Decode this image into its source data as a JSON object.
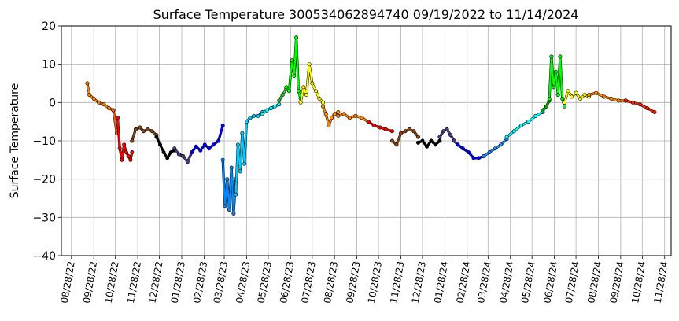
{
  "chart_data": {
    "type": "line",
    "title": "Surface Temperature 300534062894740  09/19/2022 to 11/14/2024",
    "xlabel": "",
    "ylabel": "Surface Temperature",
    "ylim": [
      -40,
      20
    ],
    "yticks": [
      -40,
      -30,
      -20,
      -10,
      0,
      10,
      20
    ],
    "yticklabels": [
      "−40",
      "−30",
      "−20",
      "−10",
      "0",
      "10",
      "20"
    ],
    "xlim": [
      "2022-08-14",
      "2024-12-07"
    ],
    "xticks": [
      "2022-08-28",
      "2022-09-28",
      "2022-10-28",
      "2022-11-28",
      "2022-12-28",
      "2023-01-28",
      "2023-02-28",
      "2023-03-28",
      "2023-04-28",
      "2023-05-28",
      "2023-06-28",
      "2023-07-28",
      "2023-08-28",
      "2023-09-28",
      "2023-10-28",
      "2023-11-28",
      "2023-12-28",
      "2024-01-28",
      "2024-02-28",
      "2024-03-28",
      "2024-04-28",
      "2024-05-28",
      "2024-06-28",
      "2024-07-28",
      "2024-08-28",
      "2024-09-28",
      "2024-10-28",
      "2024-11-28"
    ],
    "xticklabels": [
      "08/28/22",
      "09/28/22",
      "10/28/22",
      "11/28/22",
      "12/28/22",
      "01/28/23",
      "02/28/23",
      "03/28/23",
      "04/28/23",
      "05/28/23",
      "06/28/23",
      "07/28/23",
      "08/28/23",
      "09/28/23",
      "10/28/23",
      "11/28/23",
      "12/28/23",
      "01/28/24",
      "02/28/24",
      "03/28/24",
      "04/28/24",
      "05/28/24",
      "06/28/24",
      "07/28/24",
      "08/28/24",
      "09/28/24",
      "10/28/24",
      "11/28/24"
    ],
    "grid": true,
    "series": [
      {
        "color": "#ff7f00",
        "x": [
          "2022-09-19",
          "2022-09-22",
          "2022-09-28",
          "2022-10-05",
          "2022-10-12",
          "2022-10-19",
          "2022-10-25"
        ],
        "y": [
          5.0,
          2.0,
          1.0,
          0.0,
          -0.5,
          -1.5,
          -2.0
        ]
      },
      {
        "color": "#ff6000",
        "x": [
          "2022-10-25",
          "2022-10-30"
        ],
        "y": [
          -2.0,
          -8.0
        ]
      },
      {
        "color": "#ff0000",
        "x": [
          "2022-10-31",
          "2022-11-03",
          "2022-11-06",
          "2022-11-09",
          "2022-11-12",
          "2022-11-15",
          "2022-11-18",
          "2022-11-20"
        ],
        "y": [
          -4.0,
          -12.0,
          -15.0,
          -11.0,
          -13.0,
          -14.0,
          -15.0,
          -13.0
        ]
      },
      {
        "color": "#8b4513",
        "x": [
          "2022-11-20",
          "2022-11-25",
          "2022-12-01",
          "2022-12-06",
          "2022-12-12",
          "2022-12-18",
          "2022-12-24"
        ],
        "y": [
          -10.0,
          -7.0,
          -6.5,
          -7.5,
          -7.0,
          -7.5,
          -8.5
        ]
      },
      {
        "color": "#000000",
        "x": [
          "2022-12-24",
          "2022-12-29",
          "2023-01-03",
          "2023-01-08",
          "2023-01-13",
          "2023-01-18"
        ],
        "y": [
          -9.0,
          -11.0,
          -13.0,
          -14.5,
          -13.0,
          -12.5
        ]
      },
      {
        "color": "#483d8b",
        "x": [
          "2023-01-18",
          "2023-01-24",
          "2023-01-30",
          "2023-02-05",
          "2023-02-11"
        ],
        "y": [
          -12.0,
          -13.5,
          -14.0,
          -15.5,
          -13.0
        ]
      },
      {
        "color": "#0000ff",
        "x": [
          "2023-02-11",
          "2023-02-17",
          "2023-02-23",
          "2023-03-01",
          "2023-03-07",
          "2023-03-13",
          "2023-03-20",
          "2023-03-26"
        ],
        "y": [
          -13.0,
          -11.5,
          -12.5,
          -11.0,
          -12.0,
          -11.0,
          -10.0,
          -6.0
        ]
      },
      {
        "color": "#0088ff",
        "x": [
          "2023-03-26",
          "2023-03-29",
          "2023-04-01",
          "2023-04-04",
          "2023-04-07",
          "2023-04-10",
          "2023-04-13"
        ],
        "y": [
          -15.0,
          -27.0,
          -20.0,
          -28.0,
          -17.0,
          -29.0,
          -20.0
        ]
      },
      {
        "color": "#00ccff",
        "x": [
          "2023-04-13",
          "2023-04-16",
          "2023-04-19",
          "2023-04-22",
          "2023-04-25",
          "2023-04-28",
          "2023-05-03",
          "2023-05-08",
          "2023-05-14",
          "2023-05-20"
        ],
        "y": [
          -24.0,
          -11.0,
          -18.0,
          -8.0,
          -16.0,
          -5.0,
          -4.0,
          -3.5,
          -3.5,
          -2.5
        ]
      },
      {
        "color": "#00ffff",
        "x": [
          "2023-05-20",
          "2023-05-26",
          "2023-06-01",
          "2023-06-06",
          "2023-06-12"
        ],
        "y": [
          -3.0,
          -2.0,
          -1.5,
          -1.0,
          -0.5
        ]
      },
      {
        "color": "#33cc33",
        "x": [
          "2023-06-12",
          "2023-06-17",
          "2023-06-22"
        ],
        "y": [
          0.5,
          2.0,
          3.5
        ]
      },
      {
        "color": "#00ff00",
        "x": [
          "2023-06-22",
          "2023-06-26",
          "2023-06-30",
          "2023-07-03",
          "2023-07-06",
          "2023-07-09",
          "2023-07-12"
        ],
        "y": [
          4.0,
          3.0,
          11.0,
          7.0,
          17.0,
          3.0,
          1.0
        ]
      },
      {
        "color": "#ffff00",
        "x": [
          "2023-07-12",
          "2023-07-16",
          "2023-07-20",
          "2023-07-24",
          "2023-07-28",
          "2023-08-02",
          "2023-08-07",
          "2023-08-12"
        ],
        "y": [
          0.0,
          4.0,
          2.0,
          10.0,
          5.0,
          3.0,
          1.0,
          0.0
        ]
      },
      {
        "color": "#ff8c00",
        "x": [
          "2023-08-12",
          "2023-08-16",
          "2023-08-20",
          "2023-08-24",
          "2023-08-28",
          "2023-09-02"
        ],
        "y": [
          -1.0,
          -3.0,
          -6.0,
          -4.0,
          -3.0,
          -2.5
        ]
      },
      {
        "color": "#ff8c00",
        "x": [
          "2023-09-02",
          "2023-09-10",
          "2023-09-18",
          "2023-09-26",
          "2023-10-05",
          "2023-10-14"
        ],
        "y": [
          -3.5,
          -3.0,
          -4.0,
          -3.5,
          -4.0,
          -5.0
        ]
      },
      {
        "color": "#ff0000",
        "x": [
          "2023-10-14",
          "2023-10-22",
          "2023-10-30",
          "2023-11-07",
          "2023-11-16"
        ],
        "y": [
          -5.0,
          -6.0,
          -6.5,
          -7.0,
          -7.5
        ]
      },
      {
        "color": "#8b4513",
        "x": [
          "2023-11-16",
          "2023-11-22",
          "2023-11-28",
          "2023-12-04",
          "2023-12-10",
          "2023-12-16",
          "2023-12-22"
        ],
        "y": [
          -10.0,
          -11.0,
          -8.0,
          -7.5,
          -7.0,
          -7.5,
          -9.0
        ]
      },
      {
        "color": "#000000",
        "x": [
          "2023-12-22",
          "2023-12-28",
          "2024-01-03",
          "2024-01-09",
          "2024-01-15",
          "2024-01-21"
        ],
        "y": [
          -10.5,
          -10.0,
          -11.5,
          -10.0,
          -11.0,
          -10.0
        ]
      },
      {
        "color": "#483d8b",
        "x": [
          "2024-01-21",
          "2024-01-26",
          "2024-01-31",
          "2024-02-05",
          "2024-02-10",
          "2024-02-15"
        ],
        "y": [
          -9.0,
          -7.5,
          -7.0,
          -8.5,
          -10.0,
          -11.0
        ]
      },
      {
        "color": "#0000ff",
        "x": [
          "2024-02-15",
          "2024-02-22",
          "2024-03-01",
          "2024-03-08",
          "2024-03-15",
          "2024-03-22"
        ],
        "y": [
          -11.0,
          -12.0,
          -13.0,
          -14.5,
          -14.5,
          -14.0
        ]
      },
      {
        "color": "#1e90ff",
        "x": [
          "2024-03-22",
          "2024-03-30",
          "2024-04-07",
          "2024-04-15",
          "2024-04-23"
        ],
        "y": [
          -14.0,
          -13.0,
          -12.0,
          -11.0,
          -9.5
        ]
      },
      {
        "color": "#00ffff",
        "x": [
          "2024-04-23",
          "2024-05-03",
          "2024-05-13",
          "2024-05-23",
          "2024-06-02",
          "2024-06-12"
        ],
        "y": [
          -9.0,
          -7.5,
          -6.0,
          -5.0,
          -3.5,
          -2.5
        ]
      },
      {
        "color": "#00aa00",
        "x": [
          "2024-06-12",
          "2024-06-17",
          "2024-06-21"
        ],
        "y": [
          -2.0,
          -1.0,
          0.5
        ]
      },
      {
        "color": "#00ff00",
        "x": [
          "2024-06-21",
          "2024-06-24",
          "2024-06-27",
          "2024-06-30",
          "2024-07-03",
          "2024-07-06",
          "2024-07-09",
          "2024-07-12"
        ],
        "y": [
          1.0,
          12.0,
          4.0,
          8.0,
          2.0,
          12.0,
          1.0,
          -1.0
        ]
      },
      {
        "color": "#ffff00",
        "x": [
          "2024-07-12",
          "2024-07-17",
          "2024-07-22",
          "2024-07-28",
          "2024-08-03",
          "2024-08-09",
          "2024-08-15"
        ],
        "y": [
          0.0,
          3.0,
          1.5,
          2.5,
          1.0,
          2.0,
          1.5
        ]
      },
      {
        "color": "#ff8c00",
        "x": [
          "2024-08-15",
          "2024-08-25",
          "2024-09-05",
          "2024-09-15",
          "2024-09-25",
          "2024-10-05"
        ],
        "y": [
          2.0,
          2.5,
          1.5,
          1.0,
          0.5,
          0.5
        ]
      },
      {
        "color": "#ff2000",
        "x": [
          "2024-10-05",
          "2024-10-15",
          "2024-10-25",
          "2024-11-04",
          "2024-11-14"
        ],
        "y": [
          0.5,
          0.0,
          -0.5,
          -1.5,
          -2.5
        ]
      }
    ]
  }
}
